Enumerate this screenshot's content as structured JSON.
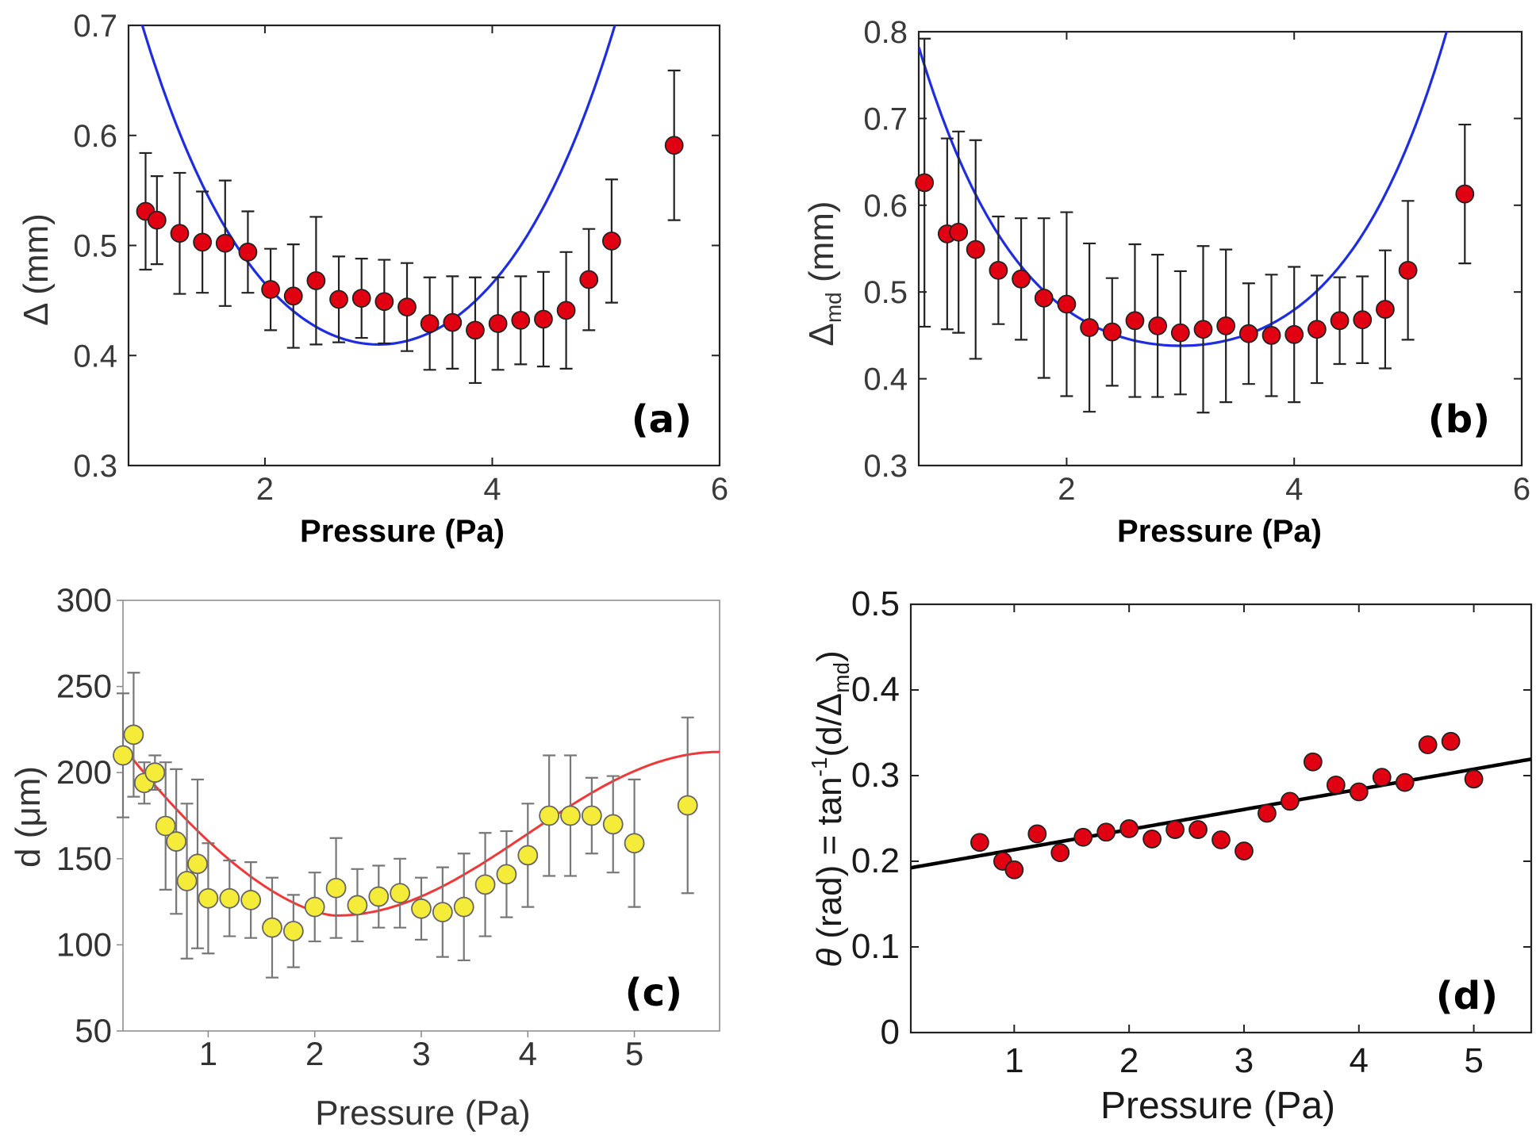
{
  "chart_data": [
    {
      "panel": "a",
      "type": "scatter",
      "xlabel": "Pressure (Pa)",
      "ylabel": "Δ (mm)",
      "xlim": [
        0.8,
        6
      ],
      "ylim": [
        0.3,
        0.7
      ],
      "xticks": [
        "2",
        "4",
        "6"
      ],
      "yticks": [
        "0.3",
        "0.4",
        "0.5",
        "0.6",
        "0.7"
      ],
      "label": "(a)",
      "marker_color": "#e00012",
      "fit_color": "#1f2de0",
      "points": [
        {
          "x": 0.95,
          "y": 0.531,
          "err": 0.053
        },
        {
          "x": 1.05,
          "y": 0.523,
          "err": 0.04
        },
        {
          "x": 1.25,
          "y": 0.511,
          "err": 0.055
        },
        {
          "x": 1.45,
          "y": 0.503,
          "err": 0.046
        },
        {
          "x": 1.65,
          "y": 0.502,
          "err": 0.057
        },
        {
          "x": 1.85,
          "y": 0.494,
          "err": 0.037
        },
        {
          "x": 2.05,
          "y": 0.46,
          "err": 0.037
        },
        {
          "x": 2.25,
          "y": 0.454,
          "err": 0.047
        },
        {
          "x": 2.45,
          "y": 0.468,
          "err": 0.058
        },
        {
          "x": 2.65,
          "y": 0.451,
          "err": 0.039
        },
        {
          "x": 2.85,
          "y": 0.452,
          "err": 0.036
        },
        {
          "x": 3.05,
          "y": 0.449,
          "err": 0.038
        },
        {
          "x": 3.25,
          "y": 0.444,
          "err": 0.04
        },
        {
          "x": 3.45,
          "y": 0.429,
          "err": 0.042
        },
        {
          "x": 3.65,
          "y": 0.43,
          "err": 0.042
        },
        {
          "x": 3.85,
          "y": 0.423,
          "err": 0.048
        },
        {
          "x": 4.05,
          "y": 0.429,
          "err": 0.042
        },
        {
          "x": 4.25,
          "y": 0.432,
          "err": 0.04
        },
        {
          "x": 4.45,
          "y": 0.433,
          "err": 0.043
        },
        {
          "x": 4.65,
          "y": 0.441,
          "err": 0.053
        },
        {
          "x": 4.85,
          "y": 0.469,
          "err": 0.046
        },
        {
          "x": 5.05,
          "y": 0.504,
          "err": 0.056
        },
        {
          "x": 5.6,
          "y": 0.591,
          "err": 0.068
        }
      ],
      "fit": {
        "x0": 3.0,
        "y0": 0.41,
        "a": 0.052,
        "b": 0.0035
      }
    },
    {
      "panel": "b",
      "type": "scatter",
      "xlabel": "Pressure (Pa)",
      "ylabel_main": "Δ",
      "ylabel_sub": "md",
      "ylabel_unit": " (mm)",
      "xlim": [
        0.7,
        6
      ],
      "ylim": [
        0.3,
        0.8
      ],
      "xticks": [
        "2",
        "4",
        "6"
      ],
      "yticks": [
        "0.3",
        "0.4",
        "0.5",
        "0.6",
        "0.7",
        "0.8"
      ],
      "label": "(b)",
      "marker_color": "#e00012",
      "fit_color": "#1f2de0",
      "points": [
        {
          "x": 0.75,
          "y": 0.626,
          "err": 0.166
        },
        {
          "x": 0.95,
          "y": 0.567,
          "err": 0.11
        },
        {
          "x": 1.05,
          "y": 0.569,
          "err": 0.116
        },
        {
          "x": 1.2,
          "y": 0.549,
          "err": 0.126
        },
        {
          "x": 1.4,
          "y": 0.525,
          "err": 0.062
        },
        {
          "x": 1.6,
          "y": 0.515,
          "err": 0.07
        },
        {
          "x": 1.8,
          "y": 0.493,
          "err": 0.092
        },
        {
          "x": 2.0,
          "y": 0.486,
          "err": 0.106
        },
        {
          "x": 2.2,
          "y": 0.459,
          "err": 0.097
        },
        {
          "x": 2.4,
          "y": 0.454,
          "err": 0.062
        },
        {
          "x": 2.6,
          "y": 0.467,
          "err": 0.088
        },
        {
          "x": 2.8,
          "y": 0.461,
          "err": 0.082
        },
        {
          "x": 3.0,
          "y": 0.453,
          "err": 0.071
        },
        {
          "x": 3.2,
          "y": 0.457,
          "err": 0.096
        },
        {
          "x": 3.4,
          "y": 0.461,
          "err": 0.088
        },
        {
          "x": 3.6,
          "y": 0.452,
          "err": 0.058
        },
        {
          "x": 3.8,
          "y": 0.45,
          "err": 0.07
        },
        {
          "x": 4.0,
          "y": 0.451,
          "err": 0.078
        },
        {
          "x": 4.2,
          "y": 0.457,
          "err": 0.062
        },
        {
          "x": 4.4,
          "y": 0.467,
          "err": 0.05
        },
        {
          "x": 4.6,
          "y": 0.468,
          "err": 0.05
        },
        {
          "x": 4.8,
          "y": 0.48,
          "err": 0.068
        },
        {
          "x": 5.0,
          "y": 0.525,
          "err": 0.08
        },
        {
          "x": 5.5,
          "y": 0.613,
          "err": 0.08
        }
      ],
      "fit": {
        "x0": 3.0,
        "y0": 0.438,
        "a": 0.036,
        "b": 0.0055
      }
    },
    {
      "panel": "c",
      "type": "scatter",
      "xlabel": "Pressure (Pa)",
      "ylabel": "d (μm)",
      "xlim": [
        0.2,
        5.8
      ],
      "ylim": [
        50,
        300
      ],
      "xticks": [
        "1",
        "2",
        "3",
        "4",
        "5"
      ],
      "yticks": [
        "50",
        "100",
        "150",
        "200",
        "250",
        "300"
      ],
      "label": "(c)",
      "marker_color": "#f5ec3a",
      "fit_color": "#f03838",
      "points": [
        {
          "x": 0.2,
          "y": 210,
          "err": 36
        },
        {
          "x": 0.3,
          "y": 222,
          "err": 36
        },
        {
          "x": 0.4,
          "y": 194,
          "err": 12
        },
        {
          "x": 0.5,
          "y": 200,
          "err": 10
        },
        {
          "x": 0.6,
          "y": 169,
          "err": 37
        },
        {
          "x": 0.7,
          "y": 160,
          "err": 42
        },
        {
          "x": 0.8,
          "y": 137,
          "err": 45
        },
        {
          "x": 0.9,
          "y": 147,
          "err": 49
        },
        {
          "x": 1.0,
          "y": 127,
          "err": 32
        },
        {
          "x": 1.2,
          "y": 127,
          "err": 22
        },
        {
          "x": 1.4,
          "y": 126,
          "err": 22
        },
        {
          "x": 1.6,
          "y": 110,
          "err": 29
        },
        {
          "x": 1.8,
          "y": 108,
          "err": 21
        },
        {
          "x": 2.0,
          "y": 122,
          "err": 20
        },
        {
          "x": 2.2,
          "y": 133,
          "err": 29
        },
        {
          "x": 2.4,
          "y": 123,
          "err": 21
        },
        {
          "x": 2.6,
          "y": 128,
          "err": 18
        },
        {
          "x": 2.8,
          "y": 130,
          "err": 20
        },
        {
          "x": 3.0,
          "y": 121,
          "err": 18
        },
        {
          "x": 3.2,
          "y": 119,
          "err": 26
        },
        {
          "x": 3.4,
          "y": 122,
          "err": 31
        },
        {
          "x": 3.6,
          "y": 135,
          "err": 30
        },
        {
          "x": 3.8,
          "y": 141,
          "err": 25
        },
        {
          "x": 4.0,
          "y": 152,
          "err": 30
        },
        {
          "x": 4.2,
          "y": 175,
          "err": 35
        },
        {
          "x": 4.4,
          "y": 175,
          "err": 35
        },
        {
          "x": 4.6,
          "y": 175,
          "err": 22
        },
        {
          "x": 4.8,
          "y": 170,
          "err": 28
        },
        {
          "x": 5.0,
          "y": 159,
          "err": 37
        },
        {
          "x": 5.5,
          "y": 181,
          "err": 51
        }
      ],
      "fit": {
        "A": 163,
        "B": 46,
        "C": 0.6
      }
    },
    {
      "panel": "d",
      "type": "scatter",
      "xlabel": "Pressure (Pa)",
      "ylabel_main": "θ",
      "ylabel_mid": " (rad) = tan",
      "ylabel_sup": "-1",
      "ylabel_paren": "(d/Δ",
      "ylabel_sub": "md",
      "ylabel_close": ")",
      "xlim": [
        0.1,
        5.5
      ],
      "ylim": [
        0,
        0.5
      ],
      "xticks": [
        "1",
        "2",
        "3",
        "4",
        "5"
      ],
      "yticks": [
        "0",
        "0.1",
        "0.2",
        "0.3",
        "0.4",
        "0.5"
      ],
      "label": "(d)",
      "marker_color": "#e00012",
      "fit_color": "#000000",
      "points": [
        {
          "x": 0.7,
          "y": 0.222
        },
        {
          "x": 0.9,
          "y": 0.2
        },
        {
          "x": 1.0,
          "y": 0.19
        },
        {
          "x": 1.2,
          "y": 0.232
        },
        {
          "x": 1.4,
          "y": 0.21
        },
        {
          "x": 1.6,
          "y": 0.228
        },
        {
          "x": 1.8,
          "y": 0.234
        },
        {
          "x": 2.0,
          "y": 0.238
        },
        {
          "x": 2.2,
          "y": 0.226
        },
        {
          "x": 2.4,
          "y": 0.237
        },
        {
          "x": 2.6,
          "y": 0.237
        },
        {
          "x": 2.8,
          "y": 0.225
        },
        {
          "x": 3.0,
          "y": 0.212
        },
        {
          "x": 3.2,
          "y": 0.256
        },
        {
          "x": 3.4,
          "y": 0.27
        },
        {
          "x": 3.6,
          "y": 0.316
        },
        {
          "x": 3.8,
          "y": 0.289
        },
        {
          "x": 4.0,
          "y": 0.281
        },
        {
          "x": 4.2,
          "y": 0.298
        },
        {
          "x": 4.4,
          "y": 0.292
        },
        {
          "x": 4.6,
          "y": 0.336
        },
        {
          "x": 4.8,
          "y": 0.34
        },
        {
          "x": 5.0,
          "y": 0.296
        }
      ],
      "fit": {
        "slope": 0.0235,
        "intercept": 0.19
      }
    }
  ]
}
